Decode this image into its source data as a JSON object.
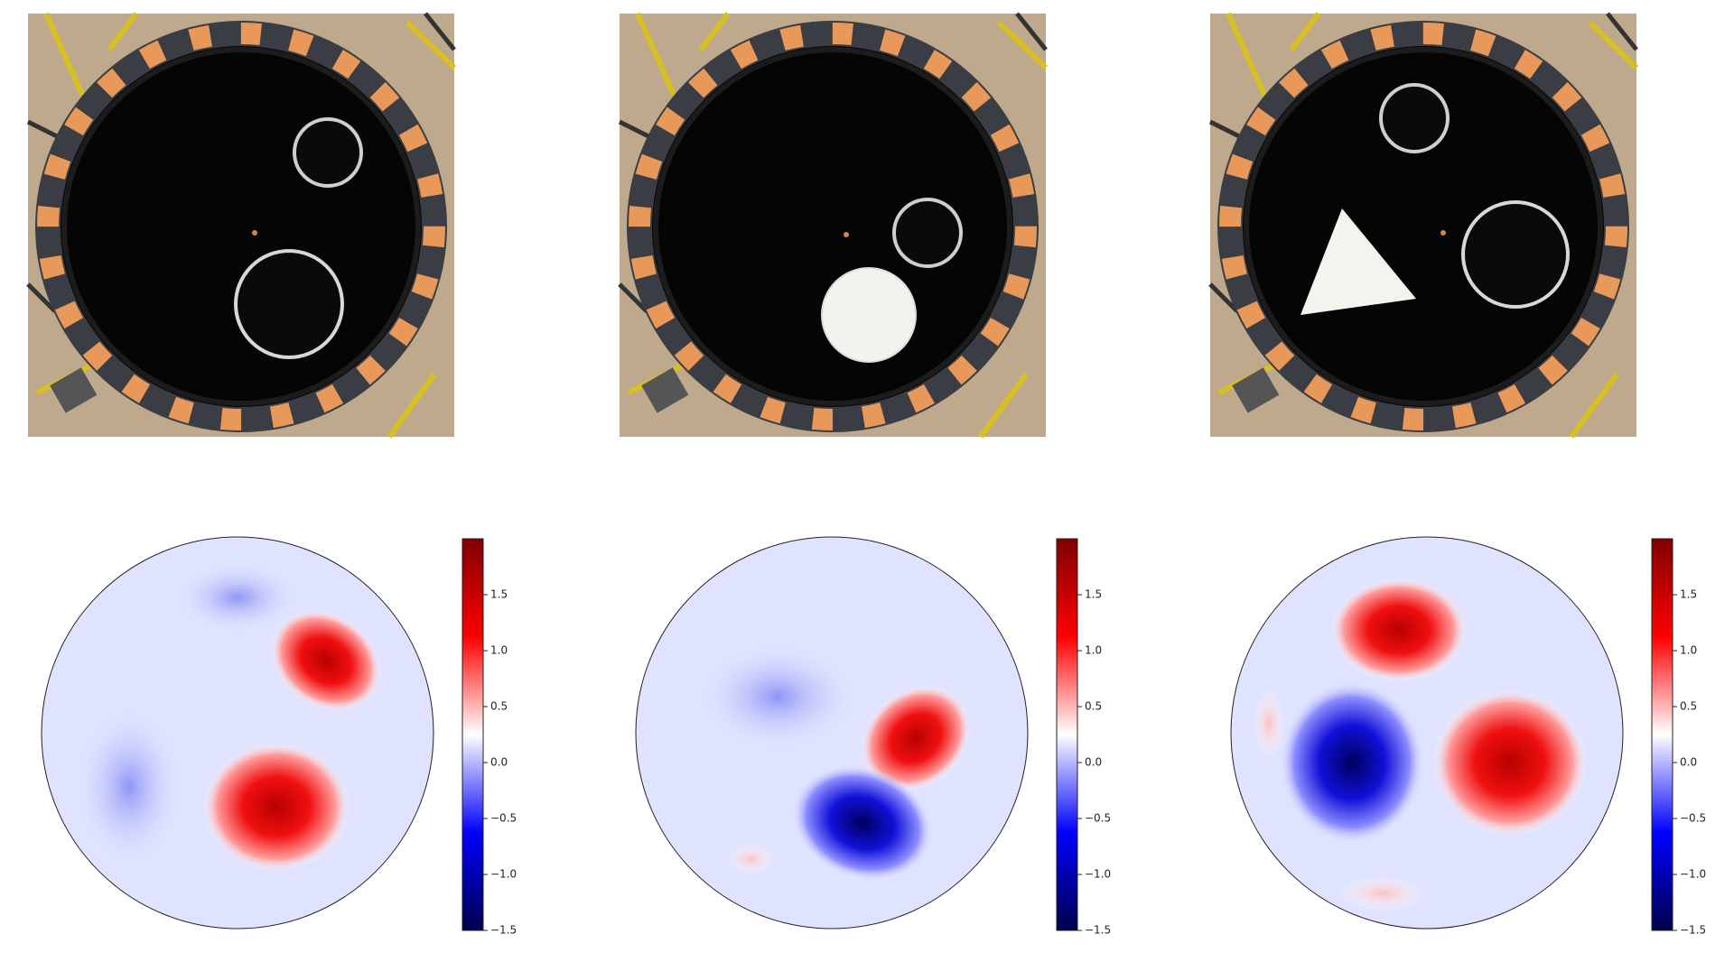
{
  "chart_data": [
    {
      "type": "heatmap",
      "colormap": "seismic",
      "clim": [
        -1.5,
        2.0
      ],
      "cticks": [
        {
          "value": -1.5,
          "label": "−1.5"
        },
        {
          "value": -1.0,
          "label": "−1.0"
        },
        {
          "value": -0.5,
          "label": "−0.5"
        },
        {
          "value": 0,
          "label": "0.0"
        },
        0.5,
        {
          "value": 1.0,
          "label": "1.0"
        },
        1.5
      ]
    },
    {
      "type": "heatmap",
      "colormap": "seismic",
      "clim": [
        -1.5,
        2.0
      ],
      "cticks": [
        {
          "value": -1.5,
          "label": "−1.5"
        },
        {
          "value": -1.0,
          "label": "−1.0"
        },
        {
          "value": -0.5,
          "label": "−0.5"
        },
        {
          "value": 0,
          "label": "0.0"
        },
        0.5,
        {
          "value": 1.0,
          "label": "1.0"
        },
        1.5
      ]
    },
    {
      "type": "heatmap",
      "colormap": "seismic",
      "clim": [
        -1.5,
        2.0
      ],
      "cticks": [
        {
          "value": -1.5,
          "label": "−1.5"
        },
        {
          "value": -1.0,
          "label": "−1.0"
        },
        {
          "value": -0.5,
          "label": "−0.5"
        },
        {
          "value": 0,
          "label": "0.0"
        },
        0.5,
        {
          "value": 1.0,
          "label": "1.0"
        },
        1.5
      ]
    }
  ]
}
